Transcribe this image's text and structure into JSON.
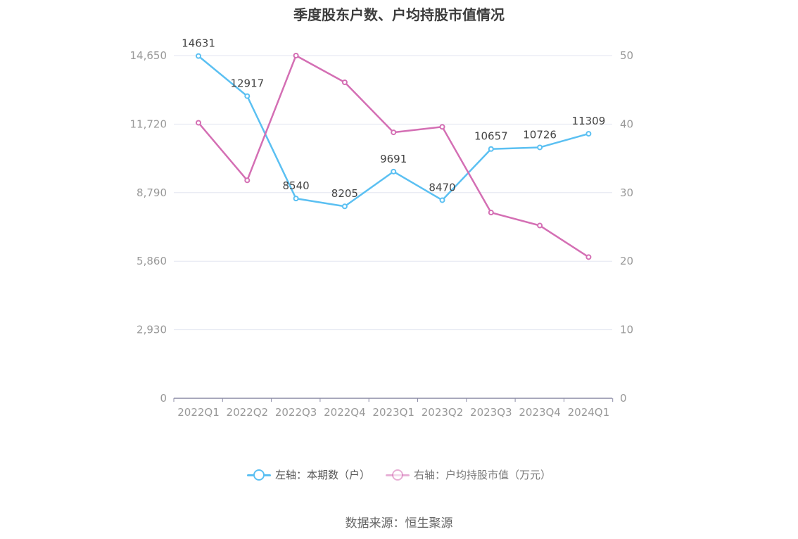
{
  "chart_data": {
    "type": "line",
    "title": "季度股东户数、户均持股市值情况",
    "categories": [
      "2022Q1",
      "2022Q2",
      "2022Q3",
      "2022Q4",
      "2023Q1",
      "2023Q2",
      "2023Q3",
      "2023Q4",
      "2024Q1"
    ],
    "left_axis": {
      "ticks": [
        "0",
        "2,930",
        "5,860",
        "8,790",
        "11,720",
        "14,650"
      ],
      "ylim": [
        0,
        14650
      ]
    },
    "right_axis": {
      "ticks": [
        "0",
        "10",
        "20",
        "30",
        "40",
        "50"
      ],
      "ylim": [
        0,
        50
      ]
    },
    "series": [
      {
        "name": "左轴：本期数（户）",
        "axis": "left",
        "color": "#5bc0f2",
        "values": [
          14631,
          12917,
          8540,
          8205,
          9691,
          8470,
          10657,
          10726,
          11309
        ],
        "labels": [
          "14631",
          "12917",
          "8540",
          "8205",
          "9691",
          "8470",
          "10657",
          "10726",
          "11309"
        ]
      },
      {
        "name": "右轴：户均持股市值（万元）",
        "axis": "right",
        "color": "#d46fb4",
        "values": [
          40.2,
          31.8,
          50.0,
          46.1,
          38.8,
          39.6,
          27.1,
          25.2,
          20.6
        ]
      }
    ],
    "grid": true,
    "legend_position": "bottom-center"
  },
  "source": "数据来源：恒生聚源"
}
